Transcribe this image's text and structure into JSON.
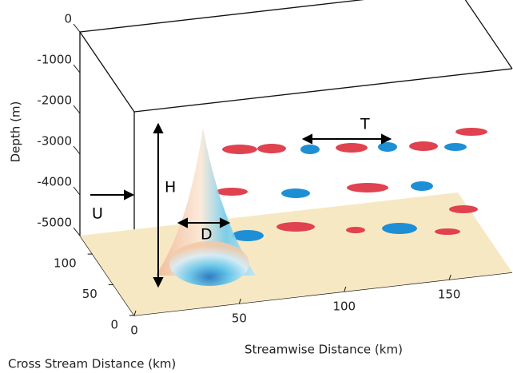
{
  "chart_data": {
    "type": "volume3d",
    "xlabel": "Streamwise Distance (km)",
    "xlim": [
      0,
      180
    ],
    "xticks": [
      0,
      50,
      100,
      150
    ],
    "ylabel": "Cross Stream Distance (km)",
    "ylim": [
      0,
      130
    ],
    "yticks": [
      0,
      50,
      100
    ],
    "zlabel": "Depth (m)",
    "zlim": [
      -5000,
      0
    ],
    "zticks": [
      0,
      -1000,
      -2000,
      -3000,
      -4000,
      -5000
    ],
    "annotations": [
      "U",
      "H",
      "D",
      "T"
    ]
  }
}
